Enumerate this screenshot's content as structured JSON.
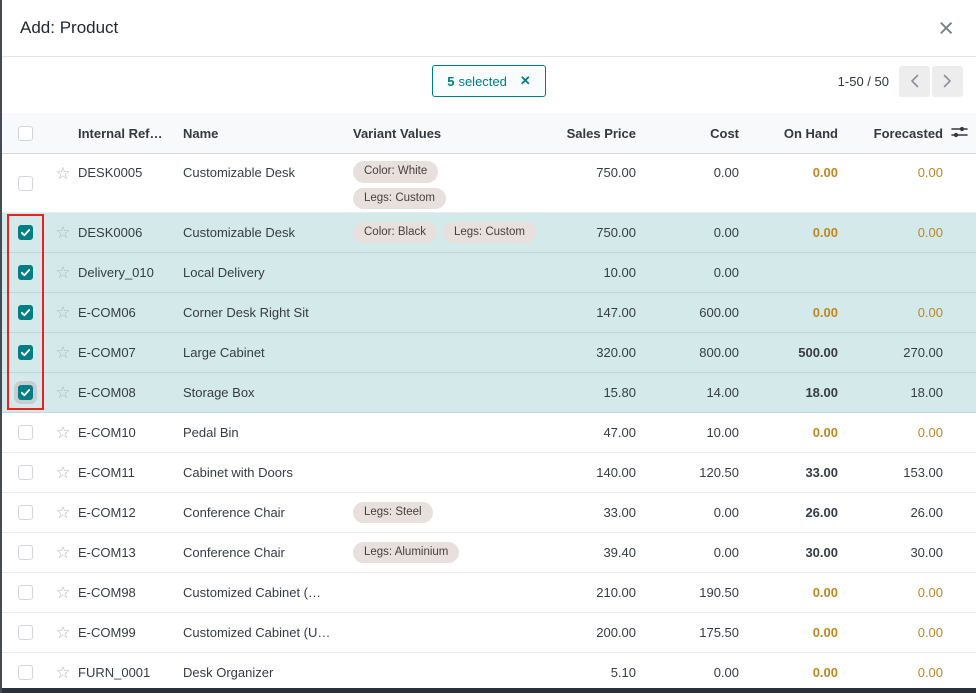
{
  "modal": {
    "title": "Add: Product",
    "close_icon": "×"
  },
  "toolbar": {
    "selected_badge": {
      "count": "5",
      "label": "selected",
      "remove_icon": "✕"
    },
    "pager": {
      "range": "1-50 / 50"
    }
  },
  "icons": {
    "star": "☆"
  },
  "colors": {
    "accent_teal": "#017e84",
    "selected_row_bg": "#d3e9ea",
    "warning_text": "#bd8723",
    "annotation_red": "#e8201e",
    "tag_bg": "#e7e0dc"
  },
  "table": {
    "columns": [
      "Internal Ref…",
      "Name",
      "Variant Values",
      "Sales Price",
      "Cost",
      "On Hand",
      "Forecasted"
    ],
    "rows": [
      {
        "ref": "DESK0005",
        "name": "Customizable Desk",
        "tags": [
          "Color: White",
          "Legs: Custom"
        ],
        "tags_stacked": true,
        "sales_price": "750.00",
        "cost": "0.00",
        "on_hand": "0.00",
        "forecasted": "0.00",
        "selected": false,
        "focus": false
      },
      {
        "ref": "DESK0006",
        "name": "Customizable Desk",
        "tags": [
          "Color: Black",
          "Legs: Custom"
        ],
        "tags_stacked": false,
        "sales_price": "750.00",
        "cost": "0.00",
        "on_hand": "0.00",
        "forecasted": "0.00",
        "selected": true,
        "focus": false
      },
      {
        "ref": "Delivery_010",
        "name": "Local Delivery",
        "tags": [],
        "tags_stacked": false,
        "sales_price": "10.00",
        "cost": "0.00",
        "on_hand": "",
        "forecasted": "",
        "selected": true,
        "focus": false
      },
      {
        "ref": "E-COM06",
        "name": "Corner Desk Right Sit",
        "tags": [],
        "tags_stacked": false,
        "sales_price": "147.00",
        "cost": "600.00",
        "on_hand": "0.00",
        "forecasted": "0.00",
        "selected": true,
        "focus": false
      },
      {
        "ref": "E-COM07",
        "name": "Large Cabinet",
        "tags": [],
        "tags_stacked": false,
        "sales_price": "320.00",
        "cost": "800.00",
        "on_hand": "500.00",
        "forecasted": "270.00",
        "selected": true,
        "focus": false
      },
      {
        "ref": "E-COM08",
        "name": "Storage Box",
        "tags": [],
        "tags_stacked": false,
        "sales_price": "15.80",
        "cost": "14.00",
        "on_hand": "18.00",
        "forecasted": "18.00",
        "selected": true,
        "focus": true
      },
      {
        "ref": "E-COM10",
        "name": "Pedal Bin",
        "tags": [],
        "tags_stacked": false,
        "sales_price": "47.00",
        "cost": "10.00",
        "on_hand": "0.00",
        "forecasted": "0.00",
        "selected": false,
        "focus": false
      },
      {
        "ref": "E-COM11",
        "name": "Cabinet with Doors",
        "tags": [],
        "tags_stacked": false,
        "sales_price": "140.00",
        "cost": "120.50",
        "on_hand": "33.00",
        "forecasted": "153.00",
        "selected": false,
        "focus": false
      },
      {
        "ref": "E-COM12",
        "name": "Conference Chair",
        "tags": [
          "Legs: Steel"
        ],
        "tags_stacked": false,
        "sales_price": "33.00",
        "cost": "0.00",
        "on_hand": "26.00",
        "forecasted": "26.00",
        "selected": false,
        "focus": false
      },
      {
        "ref": "E-COM13",
        "name": "Conference Chair",
        "tags": [
          "Legs: Aluminium"
        ],
        "tags_stacked": false,
        "sales_price": "39.40",
        "cost": "0.00",
        "on_hand": "30.00",
        "forecasted": "30.00",
        "selected": false,
        "focus": false
      },
      {
        "ref": "E-COM98",
        "name": "Customized Cabinet (…",
        "tags": [],
        "tags_stacked": false,
        "sales_price": "210.00",
        "cost": "190.50",
        "on_hand": "0.00",
        "forecasted": "0.00",
        "selected": false,
        "focus": false
      },
      {
        "ref": "E-COM99",
        "name": "Customized Cabinet (U…",
        "tags": [],
        "tags_stacked": false,
        "sales_price": "200.00",
        "cost": "175.50",
        "on_hand": "0.00",
        "forecasted": "0.00",
        "selected": false,
        "focus": false
      },
      {
        "ref": "FURN_0001",
        "name": "Desk Organizer",
        "tags": [],
        "tags_stacked": false,
        "sales_price": "5.10",
        "cost": "0.00",
        "on_hand": "0.00",
        "forecasted": "0.00",
        "selected": false,
        "focus": false
      }
    ]
  }
}
